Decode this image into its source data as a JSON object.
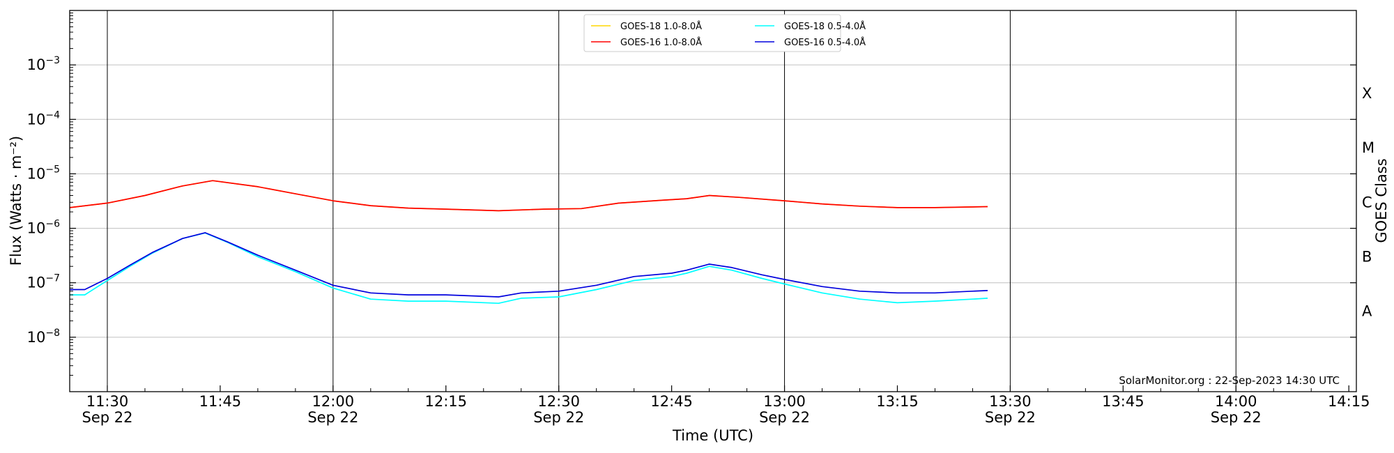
{
  "chart_data": {
    "type": "line",
    "xlabel": "Time (UTC)",
    "ylabel": "Flux (Watts · m⁻²)",
    "right_axis_label": "GOES Class",
    "credit": "SolarMonitor.org : 22-Sep-2023 14:30 UTC",
    "y_scale": "log",
    "ylim": [
      1e-09,
      0.01
    ],
    "xlim": [
      "11:25",
      "14:16"
    ],
    "grid": "horizontal at decades, vertical at 30-minute marks",
    "legend_position": "top-center",
    "x_ticks": [
      {
        "t": "11:30",
        "label": "11:30",
        "sub": "Sep 22",
        "major": true
      },
      {
        "t": "11:45",
        "label": "11:45",
        "sub": "",
        "major": false
      },
      {
        "t": "12:00",
        "label": "12:00",
        "sub": "Sep 22",
        "major": true
      },
      {
        "t": "12:15",
        "label": "12:15",
        "sub": "",
        "major": false
      },
      {
        "t": "12:30",
        "label": "12:30",
        "sub": "Sep 22",
        "major": true
      },
      {
        "t": "12:45",
        "label": "12:45",
        "sub": "",
        "major": false
      },
      {
        "t": "13:00",
        "label": "13:00",
        "sub": "Sep 22",
        "major": true
      },
      {
        "t": "13:15",
        "label": "13:15",
        "sub": "",
        "major": false
      },
      {
        "t": "13:30",
        "label": "13:30",
        "sub": "Sep 22",
        "major": true
      },
      {
        "t": "13:45",
        "label": "13:45",
        "sub": "",
        "major": false
      },
      {
        "t": "14:00",
        "label": "14:00",
        "sub": "Sep 22",
        "major": true
      },
      {
        "t": "14:15",
        "label": "14:15",
        "sub": "",
        "major": false
      }
    ],
    "y_ticks": [
      {
        "value": 1e-08,
        "base": "10",
        "exp": "−8"
      },
      {
        "value": 1e-07,
        "base": "10",
        "exp": "−7"
      },
      {
        "value": 1e-06,
        "base": "10",
        "exp": "−6"
      },
      {
        "value": 1e-05,
        "base": "10",
        "exp": "−5"
      },
      {
        "value": 0.0001,
        "base": "10",
        "exp": "−4"
      },
      {
        "value": 0.001,
        "base": "10",
        "exp": "−3"
      }
    ],
    "goes_classes": [
      {
        "label": "A",
        "value": 3e-08
      },
      {
        "label": "B",
        "value": 3e-07
      },
      {
        "label": "C",
        "value": 3e-06
      },
      {
        "label": "M",
        "value": 3e-05
      },
      {
        "label": "X",
        "value": 0.0003
      }
    ],
    "series": [
      {
        "name": "GOES-18 1.0-8.0Å",
        "color": "#ffd700",
        "points": [
          [
            "11:25",
            2.4e-06
          ],
          [
            "11:30",
            2.9e-06
          ],
          [
            "11:35",
            4e-06
          ],
          [
            "11:40",
            6e-06
          ],
          [
            "11:44",
            7.5e-06
          ],
          [
            "11:50",
            5.8e-06
          ],
          [
            "11:55",
            4.3e-06
          ],
          [
            "12:00",
            3.2e-06
          ],
          [
            "12:05",
            2.6e-06
          ],
          [
            "12:10",
            2.35e-06
          ],
          [
            "12:15",
            2.25e-06
          ],
          [
            "12:22",
            2.1e-06
          ],
          [
            "12:28",
            2.25e-06
          ],
          [
            "12:33",
            2.3e-06
          ],
          [
            "12:38",
            2.9e-06
          ],
          [
            "12:44",
            3.3e-06
          ],
          [
            "12:47",
            3.5e-06
          ],
          [
            "12:50",
            4e-06
          ],
          [
            "12:54",
            3.7e-06
          ],
          [
            "13:00",
            3.2e-06
          ],
          [
            "13:05",
            2.8e-06
          ],
          [
            "13:10",
            2.55e-06
          ],
          [
            "13:15",
            2.4e-06
          ],
          [
            "13:20",
            2.4e-06
          ],
          [
            "13:27",
            2.5e-06
          ]
        ]
      },
      {
        "name": "GOES-16 1.0-8.0Å",
        "color": "#ff0000",
        "points": [
          [
            "11:25",
            2.4e-06
          ],
          [
            "11:30",
            2.9e-06
          ],
          [
            "11:35",
            4e-06
          ],
          [
            "11:40",
            6e-06
          ],
          [
            "11:44",
            7.5e-06
          ],
          [
            "11:50",
            5.8e-06
          ],
          [
            "11:55",
            4.3e-06
          ],
          [
            "12:00",
            3.2e-06
          ],
          [
            "12:05",
            2.6e-06
          ],
          [
            "12:10",
            2.35e-06
          ],
          [
            "12:15",
            2.25e-06
          ],
          [
            "12:22",
            2.1e-06
          ],
          [
            "12:28",
            2.25e-06
          ],
          [
            "12:33",
            2.3e-06
          ],
          [
            "12:38",
            2.9e-06
          ],
          [
            "12:44",
            3.3e-06
          ],
          [
            "12:47",
            3.5e-06
          ],
          [
            "12:50",
            4e-06
          ],
          [
            "12:54",
            3.7e-06
          ],
          [
            "13:00",
            3.2e-06
          ],
          [
            "13:05",
            2.8e-06
          ],
          [
            "13:10",
            2.55e-06
          ],
          [
            "13:15",
            2.4e-06
          ],
          [
            "13:20",
            2.4e-06
          ],
          [
            "13:27",
            2.5e-06
          ]
        ]
      },
      {
        "name": "GOES-18 0.5-4.0Å",
        "color": "#00ffff",
        "points": [
          [
            "11:25",
            6e-08
          ],
          [
            "11:27",
            6e-08
          ],
          [
            "11:30",
            1.1e-07
          ],
          [
            "11:33",
            2e-07
          ],
          [
            "11:36",
            3.5e-07
          ],
          [
            "11:40",
            6.5e-07
          ],
          [
            "11:43",
            8.2e-07
          ],
          [
            "11:46",
            5.5e-07
          ],
          [
            "11:50",
            3e-07
          ],
          [
            "11:55",
            1.6e-07
          ],
          [
            "12:00",
            8e-08
          ],
          [
            "12:05",
            5e-08
          ],
          [
            "12:10",
            4.6e-08
          ],
          [
            "12:15",
            4.6e-08
          ],
          [
            "12:22",
            4.2e-08
          ],
          [
            "12:25",
            5.2e-08
          ],
          [
            "12:30",
            5.5e-08
          ],
          [
            "12:35",
            7.5e-08
          ],
          [
            "12:40",
            1.1e-07
          ],
          [
            "12:45",
            1.3e-07
          ],
          [
            "12:47",
            1.5e-07
          ],
          [
            "12:50",
            2e-07
          ],
          [
            "12:53",
            1.7e-07
          ],
          [
            "12:57",
            1.2e-07
          ],
          [
            "13:00",
            9.5e-08
          ],
          [
            "13:05",
            6.5e-08
          ],
          [
            "13:10",
            5e-08
          ],
          [
            "13:15",
            4.3e-08
          ],
          [
            "13:20",
            4.6e-08
          ],
          [
            "13:25",
            5e-08
          ],
          [
            "13:27",
            5.2e-08
          ]
        ]
      },
      {
        "name": "GOES-16 0.5-4.0Å",
        "color": "#0000dd",
        "points": [
          [
            "11:25",
            7.5e-08
          ],
          [
            "11:27",
            7.5e-08
          ],
          [
            "11:30",
            1.2e-07
          ],
          [
            "11:33",
            2.1e-07
          ],
          [
            "11:36",
            3.6e-07
          ],
          [
            "11:40",
            6.5e-07
          ],
          [
            "11:43",
            8.3e-07
          ],
          [
            "11:46",
            5.6e-07
          ],
          [
            "11:50",
            3.2e-07
          ],
          [
            "11:55",
            1.7e-07
          ],
          [
            "12:00",
            9e-08
          ],
          [
            "12:05",
            6.5e-08
          ],
          [
            "12:10",
            6e-08
          ],
          [
            "12:15",
            6e-08
          ],
          [
            "12:22",
            5.5e-08
          ],
          [
            "12:25",
            6.5e-08
          ],
          [
            "12:30",
            7e-08
          ],
          [
            "12:35",
            9e-08
          ],
          [
            "12:40",
            1.3e-07
          ],
          [
            "12:45",
            1.5e-07
          ],
          [
            "12:47",
            1.7e-07
          ],
          [
            "12:50",
            2.2e-07
          ],
          [
            "12:53",
            1.9e-07
          ],
          [
            "12:57",
            1.4e-07
          ],
          [
            "13:00",
            1.15e-07
          ],
          [
            "13:05",
            8.5e-08
          ],
          [
            "13:10",
            7e-08
          ],
          [
            "13:15",
            6.5e-08
          ],
          [
            "13:20",
            6.5e-08
          ],
          [
            "13:25",
            7e-08
          ],
          [
            "13:27",
            7.2e-08
          ]
        ]
      }
    ]
  }
}
